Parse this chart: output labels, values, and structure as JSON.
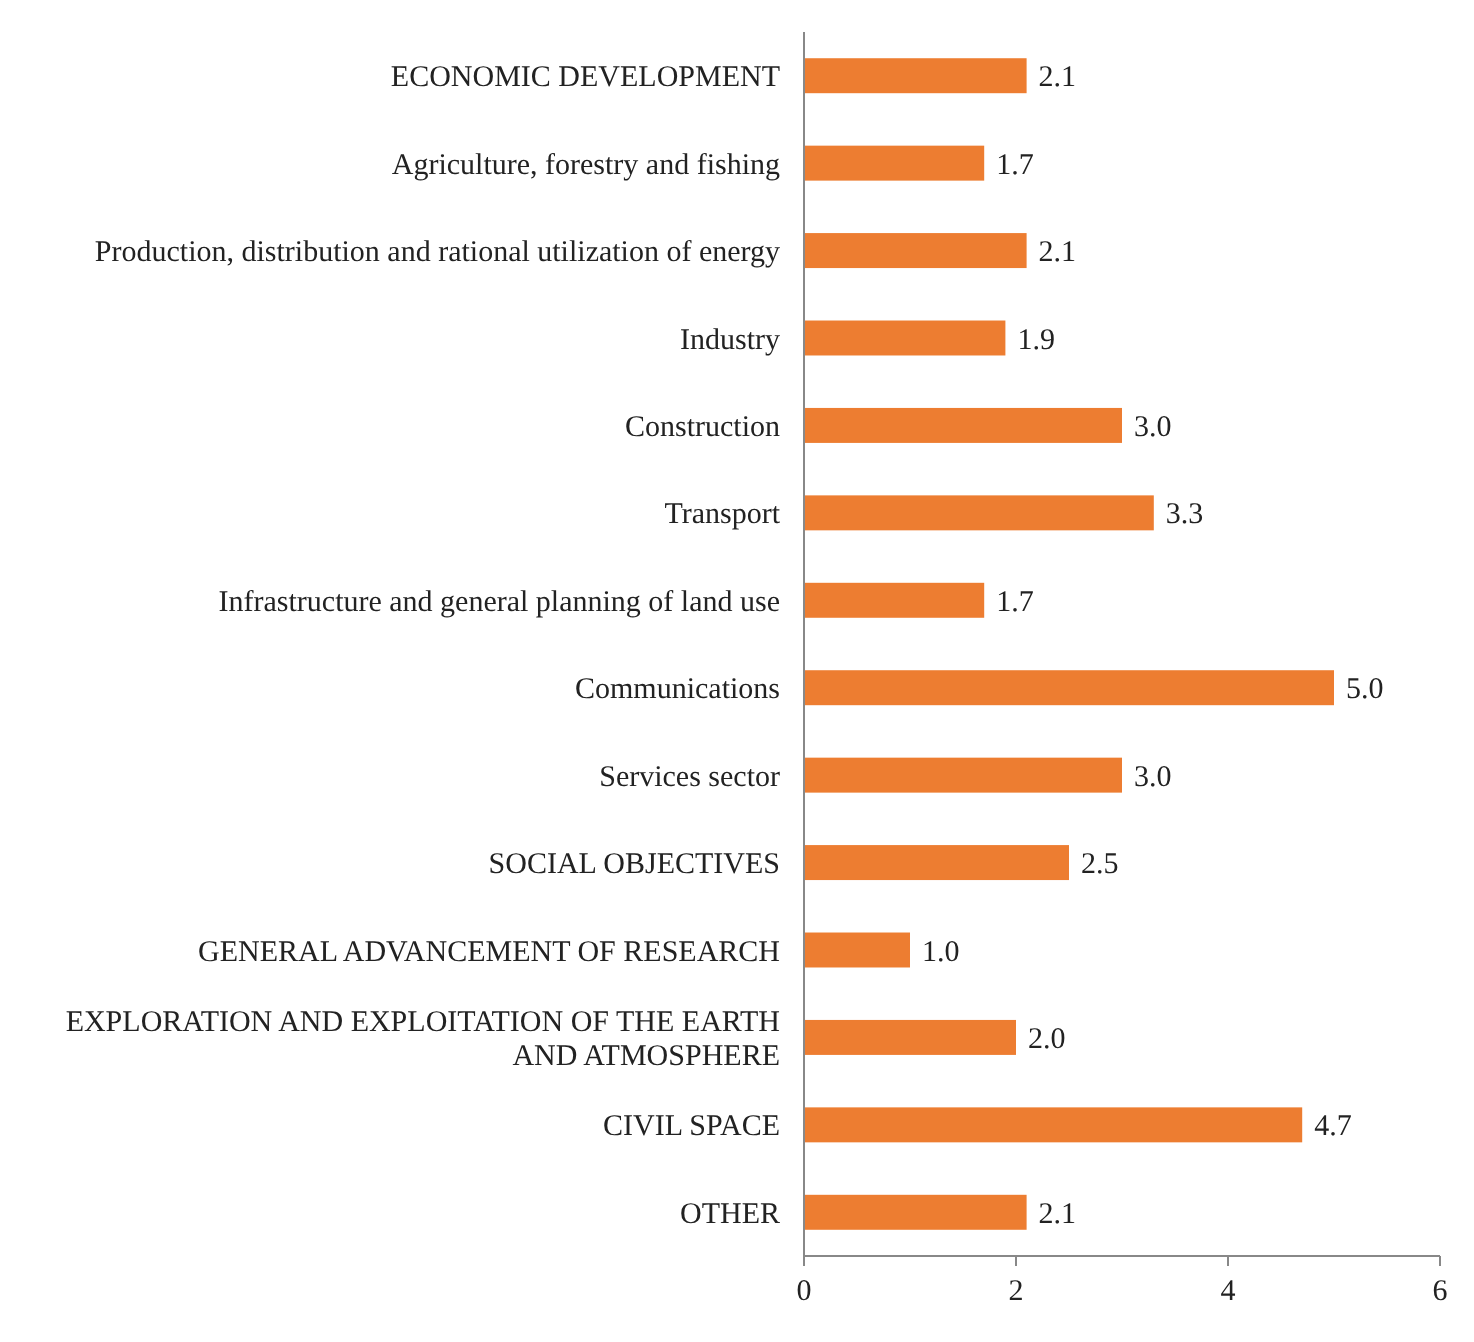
{
  "chart_data": {
    "type": "bar",
    "orientation": "horizontal",
    "categories": [
      "ECONOMIC DEVELOPMENT",
      "Agriculture, forestry and fishing",
      "Production, distribution and rational utilization of energy",
      "Industry",
      "Construction",
      "Transport",
      "Infrastructure and general planning of land use",
      "Communications",
      "Services sector",
      "SOCIAL OBJECTIVES",
      "GENERAL ADVANCEMENT OF RESEARCH",
      "EXPLORATION AND EXPLOITATION OF THE EARTH AND ATMOSPHERE",
      "CIVIL SPACE",
      "OTHER"
    ],
    "values": [
      2.1,
      1.7,
      2.1,
      1.9,
      3.0,
      3.3,
      1.7,
      5.0,
      3.0,
      2.5,
      1.0,
      2.0,
      4.7,
      2.1
    ],
    "value_labels": [
      "2.1",
      "1.7",
      "2.1",
      "1.9",
      "3.0",
      "3.3",
      "1.7",
      "5.0",
      "3.0",
      "2.5",
      "1.0",
      "2.0",
      "4.7",
      "2.1"
    ],
    "color": "#ed7d31",
    "xlim": [
      0,
      6
    ],
    "xticks": [
      0,
      2,
      4,
      6
    ],
    "grid": false
  }
}
